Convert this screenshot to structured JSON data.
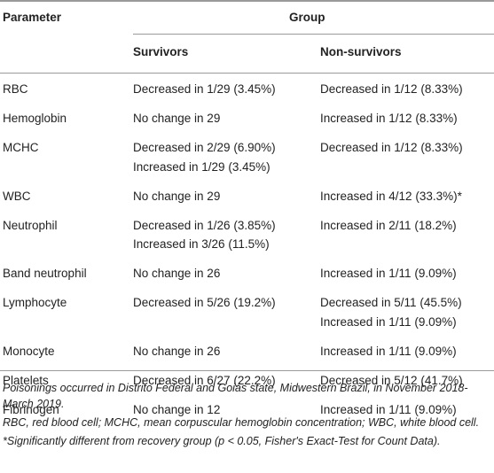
{
  "table": {
    "header": {
      "parameter": "Parameter",
      "group": "Group",
      "survivors": "Survivors",
      "non_survivors": "Non-survivors"
    },
    "rows": [
      {
        "parameter": "RBC",
        "survivors": [
          "Decreased in 1/29 (3.45%)"
        ],
        "non_survivors": [
          "Decreased in 1/12 (8.33%)"
        ]
      },
      {
        "parameter": "Hemoglobin",
        "survivors": [
          "No change in 29"
        ],
        "non_survivors": [
          "Increased in 1/12 (8.33%)"
        ]
      },
      {
        "parameter": "MCHC",
        "survivors": [
          "Decreased in 2/29 (6.90%)",
          "Increased in 1/29 (3.45%)"
        ],
        "non_survivors": [
          "Decreased in 1/12 (8.33%)"
        ]
      },
      {
        "parameter": "WBC",
        "survivors": [
          "No change in 29"
        ],
        "non_survivors": [
          "Increased in 4/12 (33.3%)*"
        ]
      },
      {
        "parameter": "Neutrophil",
        "survivors": [
          "Decreased in 1/26 (3.85%)",
          "Increased in 3/26 (11.5%)"
        ],
        "non_survivors": [
          "Increased in 2/11 (18.2%)"
        ]
      },
      {
        "parameter": "Band neutrophil",
        "survivors": [
          "No change in 26"
        ],
        "non_survivors": [
          "Increased in 1/11 (9.09%)"
        ]
      },
      {
        "parameter": "Lymphocyte",
        "survivors": [
          "Decreased in 5/26 (19.2%)"
        ],
        "non_survivors": [
          "Decreased in 5/11 (45.5%)",
          "Increased in 1/11 (9.09%)"
        ]
      },
      {
        "parameter": "Monocyte",
        "survivors": [
          "No change in 26"
        ],
        "non_survivors": [
          "Increased in 1/11 (9.09%)"
        ]
      },
      {
        "parameter": "Platelets",
        "survivors": [
          "Decreased in 6/27 (22.2%)"
        ],
        "non_survivors": [
          "Decreased in 5/12 (41.7%)"
        ]
      },
      {
        "parameter": "Fibrinogen",
        "survivors": [
          "No change in 12"
        ],
        "non_survivors": [
          "Increased in 1/11 (9.09%)"
        ]
      }
    ]
  },
  "footnotes": [
    "Poisonings occurred in Distrito Federal and Goiás state, Midwestern Brazil, in November 2018-March 2019.",
    "RBC, red blood cell; MCHC, mean corpuscular hemoglobin concentration; WBC, white blood cell.",
    "*Significantly different from recovery group (p < 0.05, Fisher's Exact-Test for Count Data)."
  ]
}
